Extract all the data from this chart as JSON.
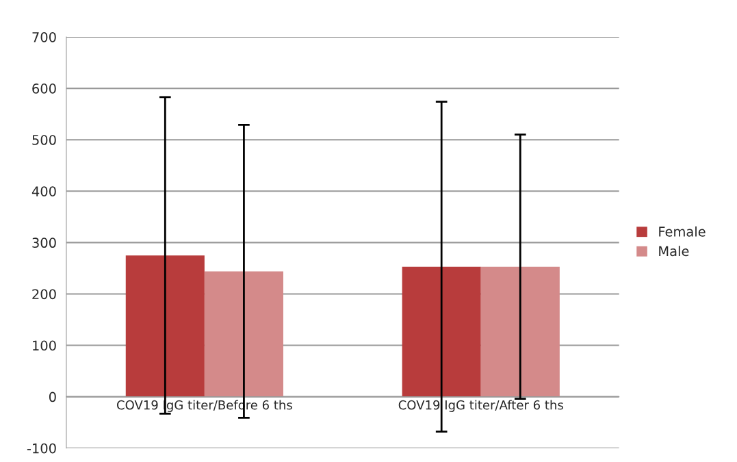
{
  "chart_data": {
    "type": "bar",
    "categories": [
      "COV19 IgG titer/Before 6 ths",
      "COV19 IgG titer/After 6 ths"
    ],
    "series": [
      {
        "name": "Female",
        "color": "#b83c3c",
        "values": [
          275,
          253
        ],
        "errors": [
          308,
          321
        ]
      },
      {
        "name": "Male",
        "color": "#d48a8a",
        "values": [
          244,
          253
        ],
        "errors": [
          285,
          257
        ]
      }
    ],
    "ylim": [
      -100,
      700
    ],
    "yticks": [
      -100,
      0,
      100,
      200,
      300,
      400,
      500,
      600,
      700
    ],
    "grid": "y",
    "legend": "right"
  }
}
